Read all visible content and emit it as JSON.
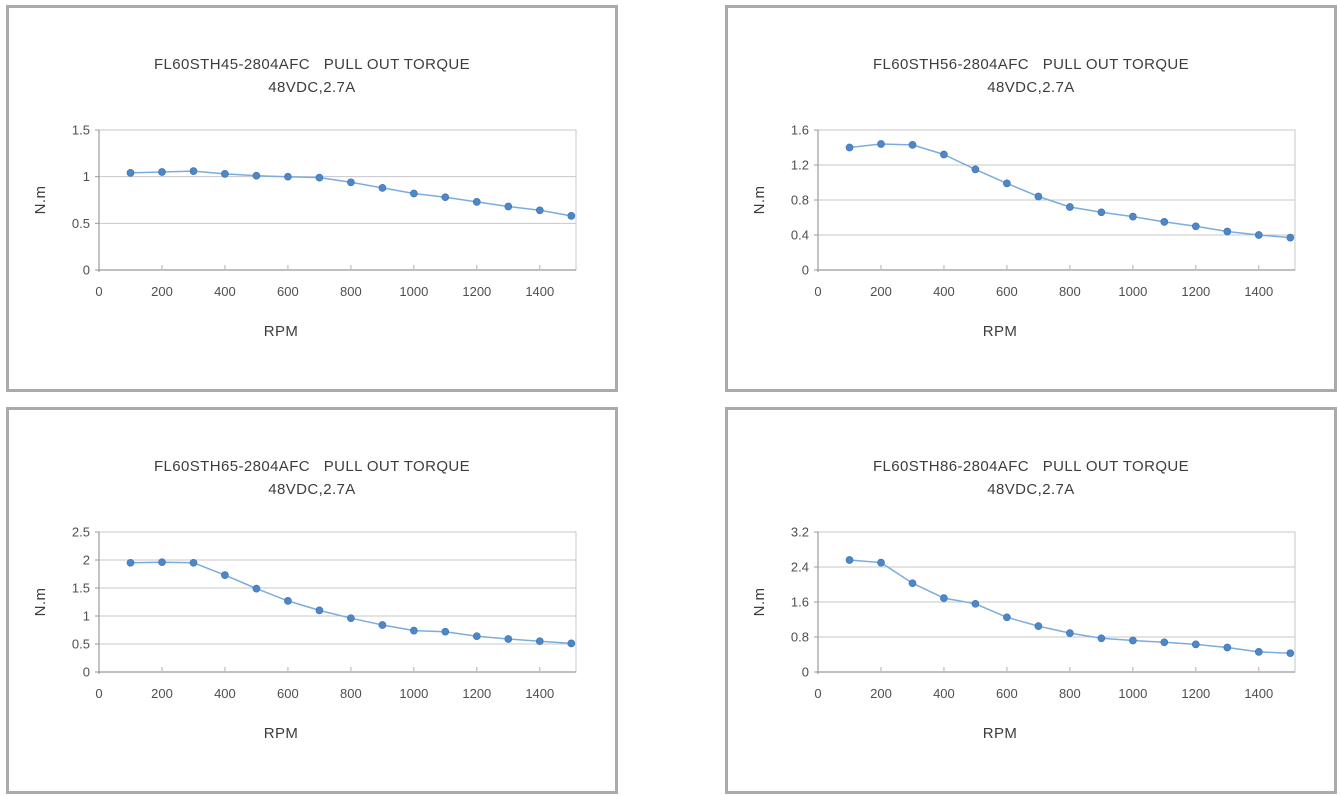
{
  "page": {
    "background": "#ffffff"
  },
  "style": {
    "panel_border": "#a8aaad",
    "grid_color": "#c7c7c9",
    "axis_color": "#9b9b9f",
    "tick_color": "#b1b1b5",
    "line_color": "#7aadde",
    "marker_fill": "#4e86c6",
    "marker_stroke": "#3f76b6",
    "title_color": "#3d3d3d",
    "tick_label_color": "#4f4f4f"
  },
  "chart_data": [
    {
      "id": "fl60sth45",
      "type": "line",
      "title_line1": "FL60STH45-2804AFC   PULL OUT TORQUE",
      "title_line2": "48VDC,2.7A",
      "xlabel": "RPM",
      "ylabel": "N.m",
      "x": [
        100,
        200,
        300,
        400,
        500,
        600,
        700,
        800,
        900,
        1000,
        1100,
        1200,
        1300,
        1400,
        1500
      ],
      "values": [
        1.04,
        1.05,
        1.06,
        1.03,
        1.01,
        1.0,
        0.99,
        0.94,
        0.88,
        0.82,
        0.78,
        0.73,
        0.68,
        0.64,
        0.58
      ],
      "xlim": [
        0,
        1515
      ],
      "ylim": [
        0,
        1.5
      ],
      "x_tick_values": [
        0,
        200,
        400,
        600,
        800,
        1000,
        1200,
        1400
      ],
      "x_tick_labels": [
        "0",
        "200",
        "400",
        "600",
        "800",
        "1000",
        "1200",
        "1400"
      ],
      "y_tick_values": [
        0,
        0.5,
        1,
        1.5
      ],
      "y_tick_labels": [
        "0",
        "0.5",
        "1",
        "1.5"
      ],
      "grid": true,
      "legend": "none"
    },
    {
      "id": "fl60sth56",
      "type": "line",
      "title_line1": "FL60STH56-2804AFC   PULL OUT TORQUE",
      "title_line2": "48VDC,2.7A",
      "xlabel": "RPM",
      "ylabel": "N.m",
      "x": [
        100,
        200,
        300,
        400,
        500,
        600,
        700,
        800,
        900,
        1000,
        1100,
        1200,
        1300,
        1400,
        1500
      ],
      "values": [
        1.4,
        1.44,
        1.43,
        1.32,
        1.15,
        0.99,
        0.84,
        0.72,
        0.66,
        0.61,
        0.55,
        0.5,
        0.44,
        0.4,
        0.37
      ],
      "xlim": [
        0,
        1515
      ],
      "ylim": [
        0,
        1.6
      ],
      "x_tick_values": [
        0,
        200,
        400,
        600,
        800,
        1000,
        1200,
        1400
      ],
      "x_tick_labels": [
        "0",
        "200",
        "400",
        "600",
        "800",
        "1000",
        "1200",
        "1400"
      ],
      "y_tick_values": [
        0,
        0.4,
        0.8,
        1.2,
        1.6
      ],
      "y_tick_labels": [
        "0",
        "0.4",
        "0.8",
        "1.2",
        "1.6"
      ],
      "grid": true,
      "legend": "none"
    },
    {
      "id": "fl60sth65",
      "type": "line",
      "title_line1": "FL60STH65-2804AFC   PULL OUT TORQUE",
      "title_line2": "48VDC,2.7A",
      "xlabel": "RPM",
      "ylabel": "N.m",
      "x": [
        100,
        200,
        300,
        400,
        500,
        600,
        700,
        800,
        900,
        1000,
        1100,
        1200,
        1300,
        1400,
        1500
      ],
      "values": [
        1.95,
        1.96,
        1.95,
        1.73,
        1.49,
        1.27,
        1.1,
        0.96,
        0.84,
        0.74,
        0.72,
        0.64,
        0.59,
        0.55,
        0.51
      ],
      "xlim": [
        0,
        1515
      ],
      "ylim": [
        0,
        2.5
      ],
      "x_tick_values": [
        0,
        200,
        400,
        600,
        800,
        1000,
        1200,
        1400
      ],
      "x_tick_labels": [
        "0",
        "200",
        "400",
        "600",
        "800",
        "1000",
        "1200",
        "1400"
      ],
      "y_tick_values": [
        0,
        0.5,
        1,
        1.5,
        2,
        2.5
      ],
      "y_tick_labels": [
        "0",
        "0.5",
        "1",
        "1.5",
        "2",
        "2.5"
      ],
      "grid": true,
      "legend": "none"
    },
    {
      "id": "fl60sth86",
      "type": "line",
      "title_line1": "FL60STH86-2804AFC   PULL OUT TORQUE",
      "title_line2": "48VDC,2.7A",
      "xlabel": "RPM",
      "ylabel": "N.m",
      "x": [
        100,
        200,
        300,
        400,
        500,
        600,
        700,
        800,
        900,
        1000,
        1100,
        1200,
        1300,
        1400,
        1500
      ],
      "values": [
        2.56,
        2.5,
        2.03,
        1.69,
        1.56,
        1.25,
        1.05,
        0.89,
        0.77,
        0.72,
        0.68,
        0.63,
        0.56,
        0.46,
        0.43
      ],
      "xlim": [
        0,
        1515
      ],
      "ylim": [
        0,
        3.2
      ],
      "x_tick_values": [
        0,
        200,
        400,
        600,
        800,
        1000,
        1200,
        1400
      ],
      "x_tick_labels": [
        "0",
        "200",
        "400",
        "600",
        "800",
        "1000",
        "1200",
        "1400"
      ],
      "y_tick_values": [
        0,
        0.8,
        1.6,
        2.4,
        3.2
      ],
      "y_tick_labels": [
        "0",
        "0.8",
        "1.6",
        "2.4",
        "3.2"
      ],
      "grid": true,
      "legend": "none"
    }
  ]
}
